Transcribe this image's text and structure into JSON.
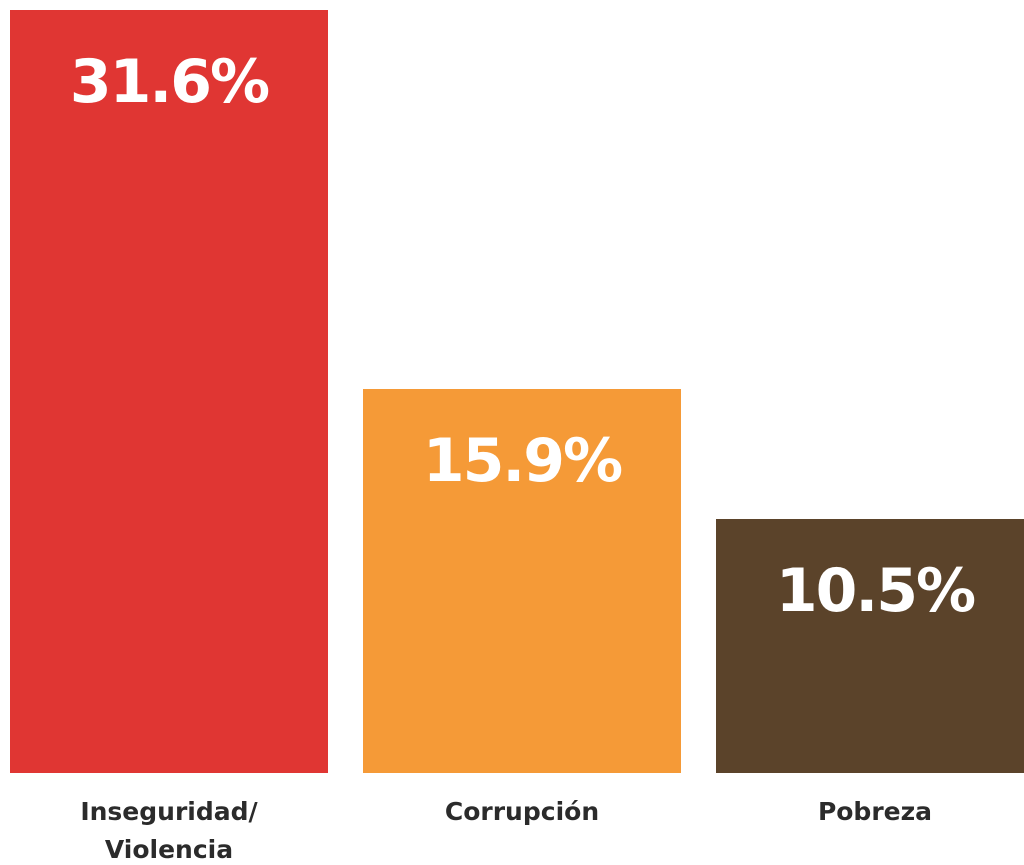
{
  "chart_data": {
    "type": "bar",
    "categories": [
      "Inseguridad/\nViolencia",
      "Corrupción",
      "Pobreza"
    ],
    "values": [
      31.6,
      15.9,
      10.5
    ],
    "value_labels": [
      "31.6%",
      "15.9%",
      "10.5%"
    ],
    "colors": [
      "#e03633",
      "#f59a37",
      "#5b432a"
    ]
  }
}
